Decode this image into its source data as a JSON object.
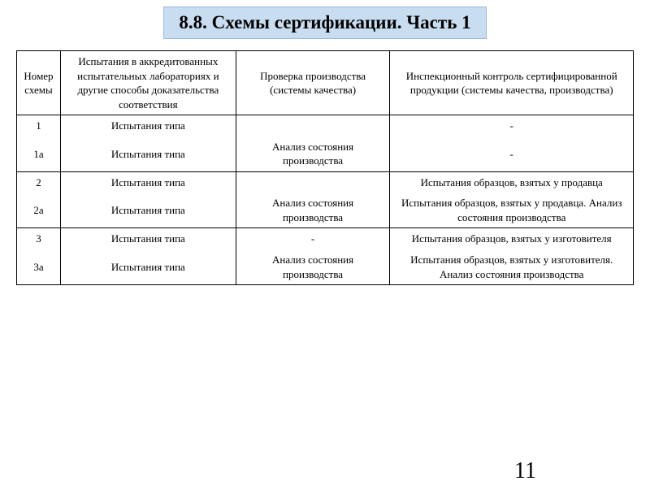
{
  "title": "8.8. Схемы сертификации. Часть 1",
  "columns": {
    "c1": "Номер схемы",
    "c2": "Испытания в аккредитованных испытательных лабораториях и другие способы доказательства соответствия",
    "c3": "Проверка производства (системы качества)",
    "c4": "Инспекционный контроль сертифицированной продукции (системы качества, производства)"
  },
  "rows": {
    "r1": {
      "num": "1",
      "test": "Испытания типа",
      "prod": "",
      "insp": "-"
    },
    "r1a": {
      "num": "1а",
      "test": "Испытания типа",
      "prod": "Анализ состояния производства",
      "insp": "-"
    },
    "r2": {
      "num": "2",
      "test": "Испытания типа",
      "prod": "",
      "insp": "Испытания образцов, взятых у продавца"
    },
    "r2a": {
      "num": "2а",
      "test": "Испытания типа",
      "prod": "Анализ состояния производства",
      "insp": "Испытания образцов, взятых у продавца. Анализ состояния производства"
    },
    "r3": {
      "num": "3",
      "test": "Испытания типа",
      "prod": "-",
      "insp": "Испытания образцов, взятых у изготовителя"
    },
    "r3a": {
      "num": "3а",
      "test": "Испытания типа",
      "prod": "Анализ состояния производства",
      "insp": "Испытания образцов, взятых у изготовителя. Анализ состояния производства"
    }
  },
  "pageNumber": "11"
}
